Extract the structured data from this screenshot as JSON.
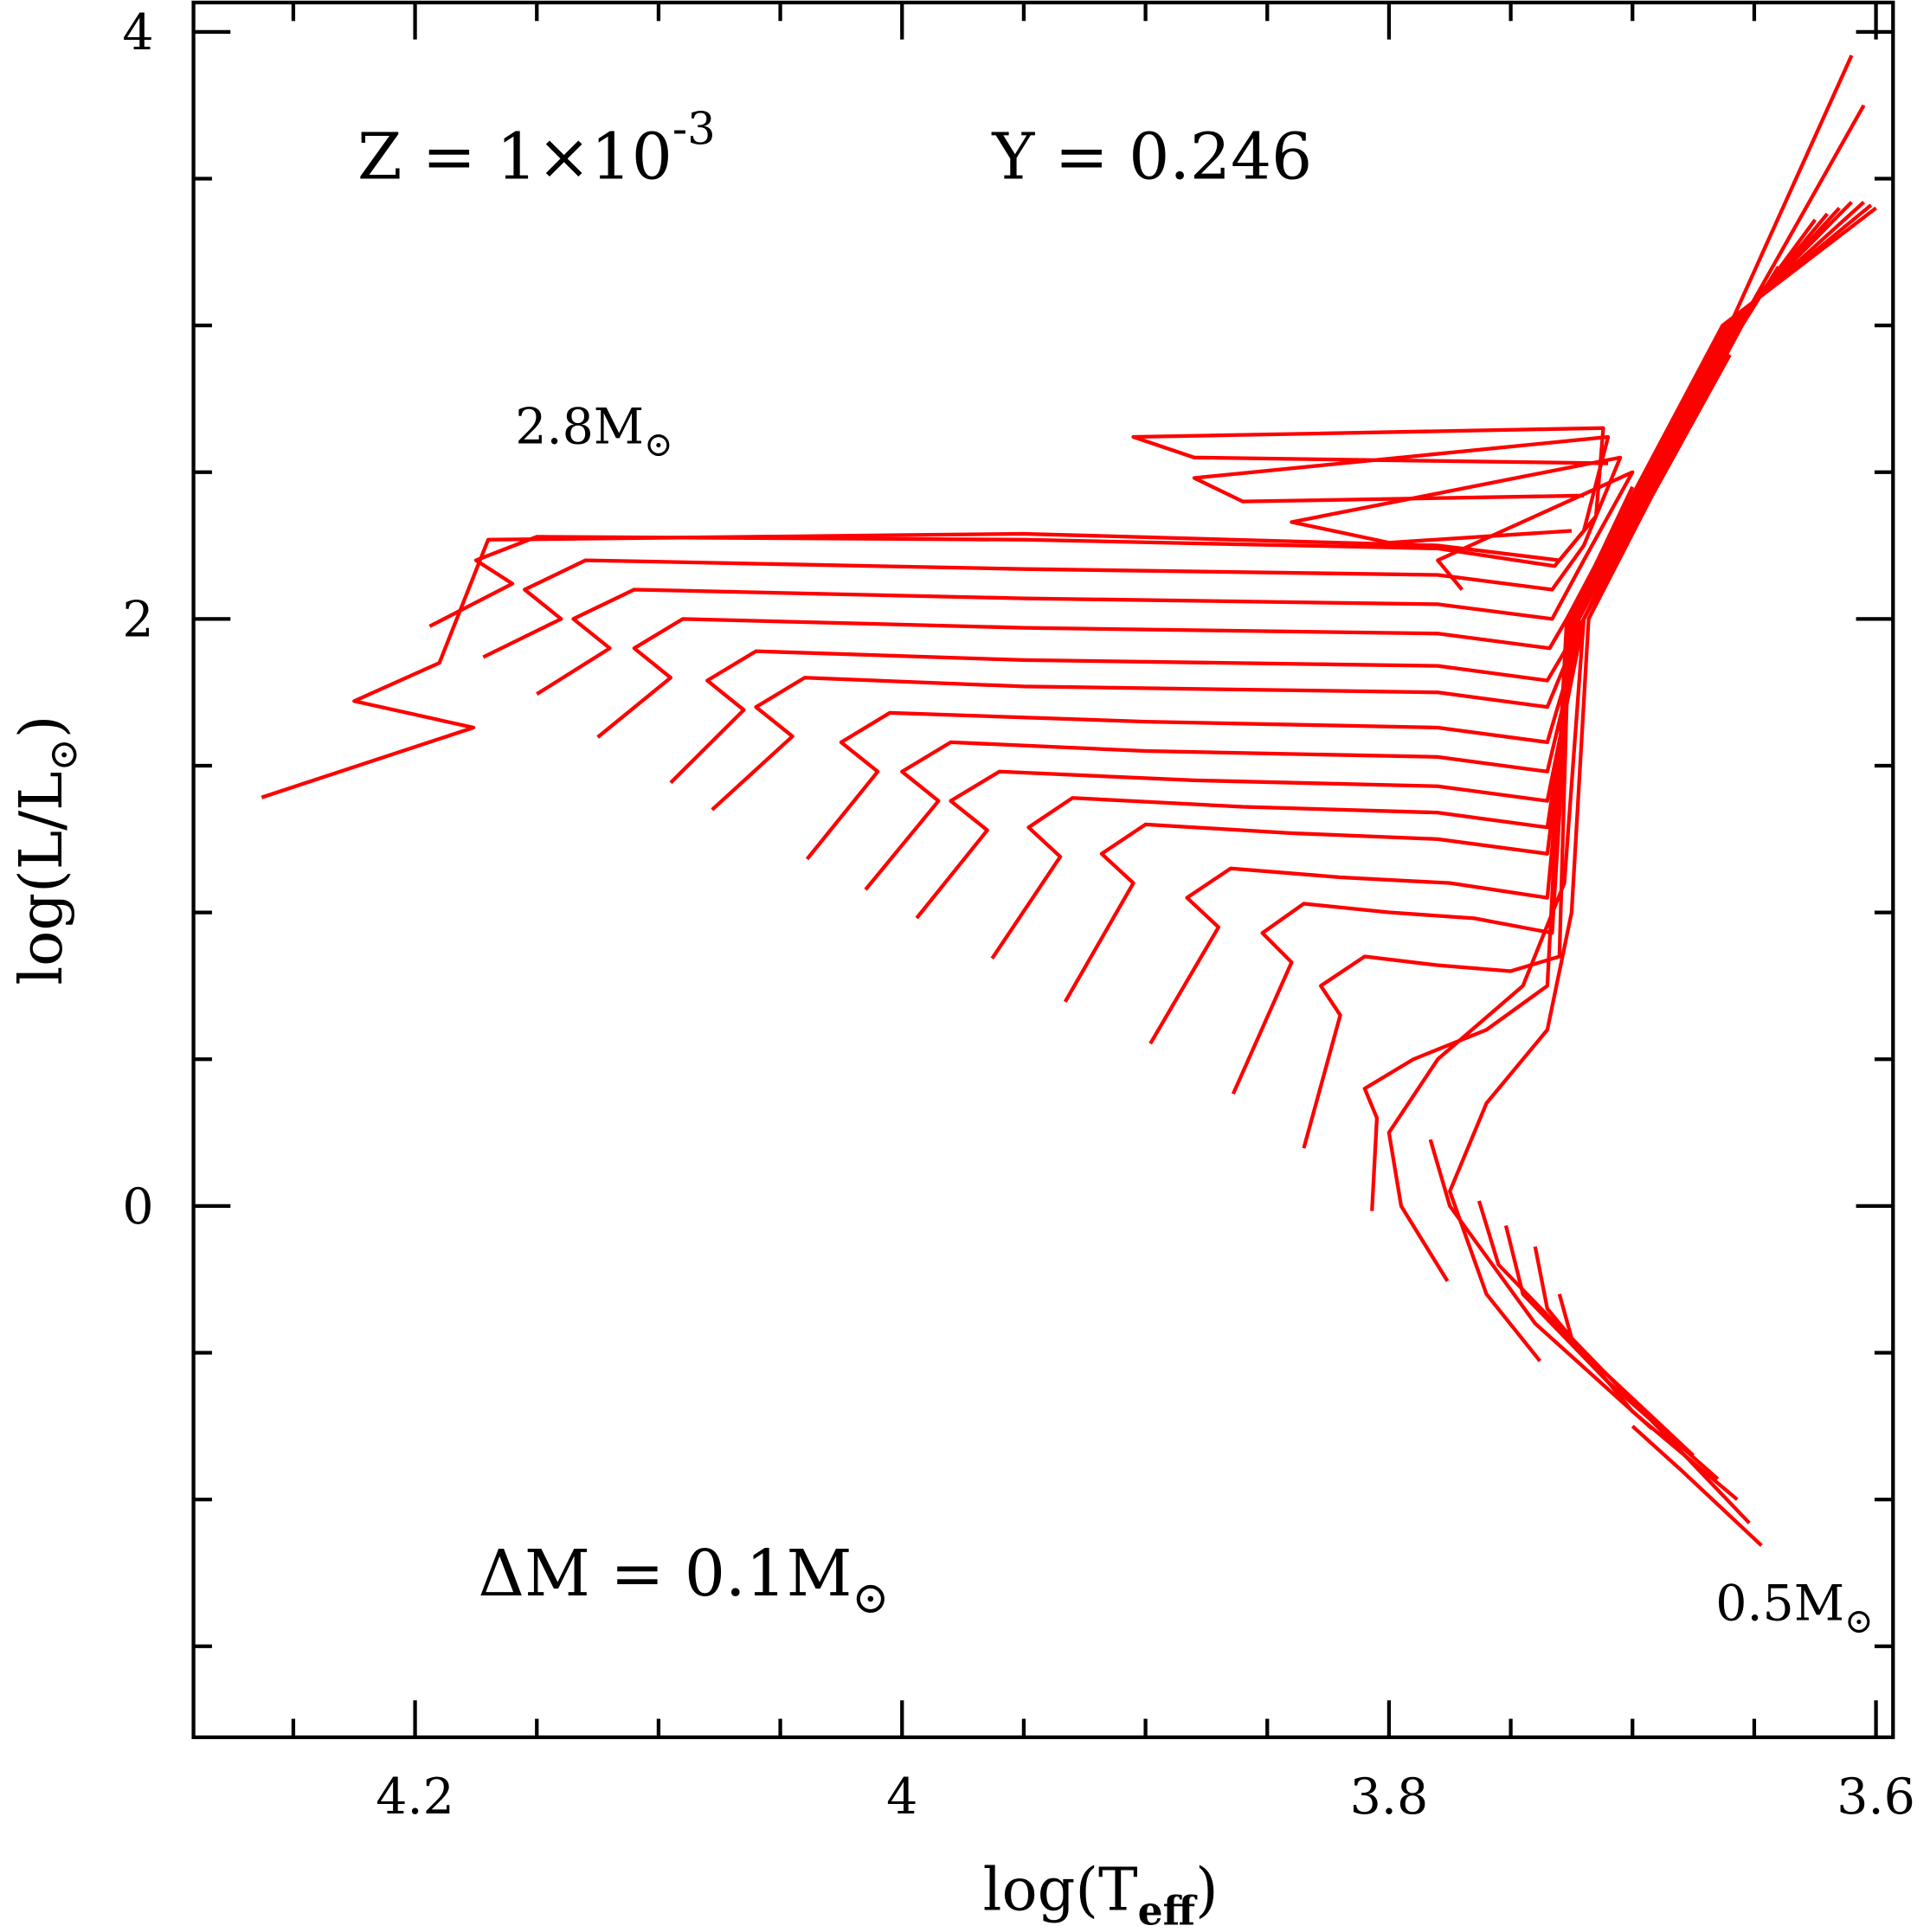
{
  "chart_data": {
    "type": "line",
    "xlabel": {
      "text": "log(T",
      "sub": "eff",
      "tail": ")"
    },
    "ylabel": {
      "text": "log(L/L",
      "sub": "⊙",
      "tail": ")"
    },
    "annotations": [
      {
        "text": "Z = 1×10",
        "sup": "-3"
      },
      {
        "text": "Y = 0.246"
      },
      {
        "text": "2.8M",
        "sub": "⊙"
      },
      {
        "text": "ΔM = 0.1M",
        "sub": "⊙"
      },
      {
        "text": "0.5M",
        "sub": "⊙"
      }
    ],
    "xlim": [
      4.291,
      3.593
    ],
    "ylim": [
      -1.81,
      4.1
    ],
    "xticks": [
      4.2,
      4,
      3.8,
      3.6
    ],
    "yticks": [
      0,
      2,
      4
    ],
    "xminor": [
      4.25,
      4.15,
      4.1,
      4.05,
      3.95,
      3.9,
      3.85,
      3.75,
      3.7,
      3.65
    ],
    "yminor": [
      -1.5,
      -1,
      -0.5,
      0.5,
      1,
      1.5,
      2.5,
      3,
      3.5
    ],
    "series": [
      {
        "color": "#ff0000",
        "x": [
          4.263,
          4.176,
          4.225,
          4.19,
          4.17,
          3.95,
          3.78,
          3.73,
          3.715,
          3.712,
          3.905,
          3.88,
          3.71
        ],
        "values": [
          1.392,
          1.63,
          1.72,
          1.85,
          2.27,
          2.29,
          2.25,
          2.2,
          2.35,
          2.65,
          2.62,
          2.55,
          2.53
        ]
      },
      {
        "color": "#ff0000",
        "x": [
          4.194,
          4.16,
          4.175,
          4.15,
          3.95,
          3.78,
          3.732,
          3.72,
          3.71,
          3.88,
          3.86,
          3.72
        ],
        "values": [
          1.975,
          2.12,
          2.2,
          2.28,
          2.27,
          2.24,
          2.18,
          2.3,
          2.62,
          2.48,
          2.4,
          2.42
        ]
      },
      {
        "color": "#ff0000",
        "x": [
          4.172,
          4.14,
          4.155,
          4.13,
          3.95,
          3.78,
          3.733,
          3.72,
          3.705,
          3.84,
          3.8,
          3.725
        ],
        "values": [
          1.87,
          2.0,
          2.1,
          2.2,
          2.17,
          2.15,
          2.1,
          2.25,
          2.55,
          2.33,
          2.26,
          2.3
        ]
      },
      {
        "color": "#ff0000",
        "x": [
          4.15,
          4.12,
          4.135,
          4.11,
          3.95,
          3.78,
          3.733,
          3.72,
          3.7,
          3.78,
          3.77
        ],
        "values": [
          1.744,
          1.9,
          2.0,
          2.1,
          2.07,
          2.05,
          2.0,
          2.2,
          2.5,
          2.2,
          2.1
        ]
      },
      {
        "color": "#ff0000",
        "x": [
          4.125,
          4.095,
          4.11,
          4.09,
          3.95,
          3.78,
          3.734,
          3.72,
          3.7
        ],
        "values": [
          1.597,
          1.8,
          1.9,
          2.0,
          1.97,
          1.95,
          1.9,
          2.1,
          2.45
        ]
      },
      {
        "color": "#ff0000",
        "x": [
          4.095,
          4.065,
          4.08,
          4.06,
          3.95,
          3.78,
          3.735,
          3.72,
          3.69
        ],
        "values": [
          1.442,
          1.69,
          1.79,
          1.89,
          1.86,
          1.84,
          1.79,
          2.0,
          2.5
        ]
      },
      {
        "color": "#ff0000",
        "x": [
          4.078,
          4.045,
          4.06,
          4.04,
          3.95,
          3.78,
          3.735,
          3.72,
          3.68
        ],
        "values": [
          1.35,
          1.6,
          1.7,
          1.8,
          1.77,
          1.75,
          1.7,
          2.0,
          2.6
        ]
      },
      {
        "color": "#ff0000",
        "x": [
          4.039,
          4.01,
          4.025,
          4.005,
          3.9,
          3.78,
          3.735,
          3.72,
          3.66
        ],
        "values": [
          1.182,
          1.48,
          1.58,
          1.68,
          1.65,
          1.63,
          1.58,
          2.0,
          2.9
        ]
      },
      {
        "color": "#ff0000",
        "x": [
          4.015,
          3.985,
          4.0,
          3.98,
          3.9,
          3.78,
          3.735,
          3.72,
          3.655,
          3.64
        ],
        "values": [
          1.078,
          1.38,
          1.48,
          1.58,
          1.55,
          1.53,
          1.48,
          2.0,
          3.0,
          3.2
        ]
      },
      {
        "color": "#ff0000",
        "x": [
          3.994,
          3.965,
          3.98,
          3.96,
          3.88,
          3.78,
          3.735,
          3.72,
          3.657,
          3.625
        ],
        "values": [
          0.981,
          1.28,
          1.38,
          1.48,
          1.45,
          1.43,
          1.38,
          2.0,
          3.0,
          3.36
        ]
      },
      {
        "color": "#ff0000",
        "x": [
          3.963,
          3.935,
          3.948,
          3.93,
          3.86,
          3.78,
          3.735,
          3.722,
          3.658,
          3.62
        ],
        "values": [
          0.843,
          1.19,
          1.29,
          1.39,
          1.36,
          1.34,
          1.29,
          2.0,
          3.0,
          3.38
        ]
      },
      {
        "color": "#ff0000",
        "x": [
          3.933,
          3.905,
          3.918,
          3.9,
          3.84,
          3.78,
          3.735,
          3.723,
          3.659,
          3.615
        ],
        "values": [
          0.696,
          1.1,
          1.2,
          1.3,
          1.27,
          1.25,
          1.2,
          2.0,
          3.0,
          3.4
        ]
      },
      {
        "color": "#ff0000",
        "x": [
          3.898,
          3.87,
          3.883,
          3.865,
          3.82,
          3.775,
          3.735,
          3.724,
          3.66,
          3.61
        ],
        "values": [
          0.553,
          0.95,
          1.05,
          1.15,
          1.12,
          1.1,
          1.05,
          2.0,
          3.0,
          3.42
        ]
      },
      {
        "color": "#ff0000",
        "x": [
          3.864,
          3.84,
          3.852,
          3.835,
          3.8,
          3.765,
          3.733,
          3.725,
          3.661,
          3.605
        ],
        "values": [
          0.382,
          0.83,
          0.93,
          1.03,
          1.0,
          0.98,
          0.93,
          2.0,
          3.0,
          3.42
        ]
      },
      {
        "color": "#ff0000",
        "x": [
          3.835,
          3.82,
          3.828,
          3.81,
          3.78,
          3.75,
          3.73,
          3.726,
          3.662,
          3.602
        ],
        "values": [
          0.197,
          0.65,
          0.75,
          0.85,
          0.82,
          0.8,
          0.85,
          2.0,
          3.0,
          3.41
        ]
      },
      {
        "color": "#ff0000",
        "x": [
          3.807,
          3.805,
          3.81,
          3.79,
          3.76,
          3.735,
          3.727,
          3.663,
          3.6
        ],
        "values": [
          -0.017,
          0.3,
          0.4,
          0.5,
          0.6,
          0.75,
          2.0,
          3.0,
          3.4
        ]
      },
      {
        "color": "#ff0000",
        "x": [
          3.776,
          3.795,
          3.8,
          3.78,
          3.745,
          3.728,
          3.72,
          3.66,
          3.61
        ],
        "values": [
          -0.256,
          0.0,
          0.25,
          0.5,
          0.75,
          1.1,
          2.0,
          3.0,
          3.92
        ]
      },
      {
        "color": "#ff0000",
        "x": [
          3.738,
          3.76,
          3.775,
          3.76,
          3.735,
          3.725,
          3.718,
          3.656,
          3.605
        ],
        "values": [
          -0.528,
          -0.3,
          0.05,
          0.35,
          0.6,
          1.0,
          2.0,
          3.0,
          3.75
        ]
      },
      {
        "color": "#ff0000",
        "x": [
          3.692,
          3.74,
          3.775,
          3.783
        ],
        "values": [
          -0.759,
          -0.4,
          0.0,
          0.226
        ]
      },
      {
        "color": "#ff0000",
        "x": [
          3.675,
          3.72,
          3.755,
          3.763
        ],
        "values": [
          -0.85,
          -0.5,
          -0.2,
          0.017
        ]
      },
      {
        "color": "#ff0000",
        "x": [
          3.665,
          3.71,
          3.745,
          3.752
        ],
        "values": [
          -0.93,
          -0.6,
          -0.3,
          -0.067
        ]
      },
      {
        "color": "#ff0000",
        "x": [
          3.657,
          3.7,
          3.735,
          3.74
        ],
        "values": [
          -1.0,
          -0.7,
          -0.35,
          -0.138
        ]
      },
      {
        "color": "#ff0000",
        "x": [
          3.652,
          3.69,
          3.725,
          3.73
        ],
        "values": [
          -1.08,
          -0.75,
          -0.45,
          -0.3
        ]
      },
      {
        "color": "#ff0000",
        "x": [
          3.647,
          3.68,
          3.7
        ],
        "values": [
          -1.157,
          -0.9,
          -0.75
        ]
      }
    ]
  }
}
